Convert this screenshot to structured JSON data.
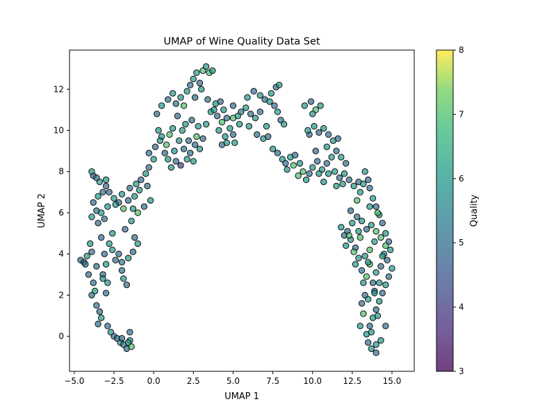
{
  "chart_data": {
    "type": "scatter",
    "title": "UMAP of Wine Quality Data Set",
    "xlabel": "UMAP 1",
    "ylabel": "UMAP 2",
    "xlim": [
      -5.3,
      16.4
    ],
    "ylim": [
      -1.7,
      13.9
    ],
    "x_ticks": [
      -5.0,
      -2.5,
      0.0,
      2.5,
      5.0,
      7.5,
      10.0,
      12.5,
      15.0
    ],
    "x_tick_labels": [
      "−5.0",
      "−2.5",
      "0.0",
      "2.5",
      "5.0",
      "7.5",
      "10.0",
      "12.5",
      "15.0"
    ],
    "y_ticks": [
      0,
      2,
      4,
      6,
      8,
      10,
      12
    ],
    "y_tick_labels": [
      "0",
      "2",
      "4",
      "6",
      "8",
      "10",
      "12"
    ],
    "grid": false,
    "colormap": "viridis",
    "colorbar": {
      "label": "Quality",
      "min": 3,
      "max": 8,
      "ticks": [
        3,
        4,
        5,
        6,
        7,
        8
      ],
      "tick_labels": [
        "3",
        "4",
        "5",
        "6",
        "7",
        "8"
      ]
    },
    "marker_edge_color": "#111111",
    "marker_alpha": 0.7,
    "points": [
      [
        -4.6,
        3.7,
        5
      ],
      [
        -4.4,
        3.6,
        5
      ],
      [
        -4.2,
        3.9,
        6
      ],
      [
        -4.3,
        3.5,
        5
      ],
      [
        -4.0,
        4.5,
        6
      ],
      [
        -3.9,
        4.1,
        5
      ],
      [
        -4.1,
        3.0,
        5
      ],
      [
        -3.8,
        2.6,
        5
      ],
      [
        -3.9,
        2.0,
        5
      ],
      [
        -3.7,
        2.2,
        6
      ],
      [
        -3.6,
        1.5,
        5
      ],
      [
        -3.4,
        1.2,
        5
      ],
      [
        -3.3,
        0.9,
        6
      ],
      [
        -3.5,
        0.6,
        5
      ],
      [
        -3.0,
        2.1,
        5
      ],
      [
        -2.9,
        2.6,
        6
      ],
      [
        -3.2,
        3.0,
        5
      ],
      [
        -3.0,
        3.5,
        6
      ],
      [
        -3.1,
        4.0,
        5
      ],
      [
        -2.8,
        4.5,
        6
      ],
      [
        -3.3,
        4.8,
        5
      ],
      [
        -3.5,
        5.5,
        5
      ],
      [
        -3.9,
        5.8,
        6
      ],
      [
        -3.6,
        6.1,
        5
      ],
      [
        -3.3,
        6.0,
        6
      ],
      [
        -3.1,
        5.7,
        5
      ],
      [
        -2.9,
        6.3,
        6
      ],
      [
        -3.8,
        6.5,
        5
      ],
      [
        -3.5,
        6.8,
        6
      ],
      [
        -3.2,
        7.0,
        5
      ],
      [
        -3.0,
        7.3,
        5
      ],
      [
        -3.4,
        7.5,
        6
      ],
      [
        -3.8,
        7.8,
        5
      ],
      [
        -3.9,
        8.0,
        6
      ],
      [
        -3.6,
        7.7,
        5
      ],
      [
        -3.0,
        7.6,
        6
      ],
      [
        -2.8,
        7.0,
        5
      ],
      [
        -2.5,
        6.7,
        6
      ],
      [
        -2.2,
        6.5,
        5
      ],
      [
        -2.0,
        6.9,
        6
      ],
      [
        -1.6,
        6.6,
        5
      ],
      [
        -1.3,
        6.2,
        6
      ],
      [
        -1.5,
        7.2,
        5
      ],
      [
        -1.1,
        7.4,
        6
      ],
      [
        -0.8,
        7.6,
        5
      ],
      [
        -0.5,
        7.9,
        6
      ],
      [
        -0.3,
        8.2,
        5
      ],
      [
        -1.0,
        6.0,
        7
      ],
      [
        -0.6,
        6.3,
        5
      ],
      [
        -0.2,
        6.6,
        6
      ],
      [
        -1.8,
        5.2,
        5
      ],
      [
        -1.4,
        5.6,
        6
      ],
      [
        -1.2,
        4.8,
        5
      ],
      [
        -1.0,
        4.5,
        6
      ],
      [
        -1.3,
        4.1,
        5
      ],
      [
        -1.6,
        3.8,
        6
      ],
      [
        -2.0,
        3.6,
        5
      ],
      [
        -2.4,
        3.7,
        5
      ],
      [
        -2.6,
        4.2,
        6
      ],
      [
        -2.2,
        4.0,
        5
      ],
      [
        -2.0,
        3.2,
        5
      ],
      [
        -1.9,
        2.8,
        6
      ],
      [
        -1.7,
        2.5,
        5
      ],
      [
        -2.9,
        0.5,
        5
      ],
      [
        -2.7,
        0.2,
        6
      ],
      [
        -2.5,
        0.0,
        5
      ],
      [
        -2.3,
        -0.1,
        5
      ],
      [
        -2.1,
        -0.3,
        6
      ],
      [
        -1.9,
        -0.4,
        5
      ],
      [
        -1.7,
        -0.6,
        5
      ],
      [
        -1.5,
        -0.2,
        6
      ],
      [
        -1.4,
        -0.5,
        7
      ],
      [
        -1.5,
        0.2,
        5
      ],
      [
        -1.6,
        -0.3,
        6
      ],
      [
        -2.0,
        -0.1,
        5
      ],
      [
        -0.3,
        8.9,
        5
      ],
      [
        0.1,
        9.2,
        5
      ],
      [
        0.3,
        10.0,
        6
      ],
      [
        0.5,
        9.7,
        6
      ],
      [
        0.8,
        9.3,
        7
      ],
      [
        0.9,
        8.6,
        6
      ],
      [
        1.1,
        8.2,
        6
      ],
      [
        0.7,
        8.9,
        5
      ],
      [
        1.4,
        8.5,
        5
      ],
      [
        1.3,
        9.0,
        6
      ],
      [
        1.6,
        9.5,
        6
      ],
      [
        1.9,
        9.1,
        5
      ],
      [
        1.7,
        8.3,
        4
      ],
      [
        2.1,
        8.6,
        6
      ],
      [
        2.3,
        8.9,
        5
      ],
      [
        2.5,
        8.5,
        6
      ],
      [
        2.6,
        9.3,
        5
      ],
      [
        2.9,
        9.1,
        6
      ],
      [
        3.1,
        9.6,
        5
      ],
      [
        2.8,
        10.2,
        6
      ],
      [
        2.4,
        10.5,
        5
      ],
      [
        2.0,
        10.3,
        6
      ],
      [
        1.5,
        10.7,
        5
      ],
      [
        1.2,
        10.1,
        6
      ],
      [
        0.2,
        10.8,
        5
      ],
      [
        0.5,
        11.2,
        6
      ],
      [
        0.9,
        11.5,
        5
      ],
      [
        1.2,
        11.8,
        6
      ],
      [
        1.4,
        11.3,
        5
      ],
      [
        1.7,
        11.6,
        6
      ],
      [
        1.9,
        11.2,
        7
      ],
      [
        2.1,
        11.9,
        6
      ],
      [
        2.3,
        12.2,
        5
      ],
      [
        2.5,
        12.5,
        6
      ],
      [
        2.7,
        12.8,
        6
      ],
      [
        2.9,
        12.3,
        5
      ],
      [
        3.1,
        12.9,
        7
      ],
      [
        3.3,
        13.1,
        6
      ],
      [
        3.5,
        12.8,
        7
      ],
      [
        3.7,
        12.9,
        6
      ],
      [
        3.0,
        12.0,
        6
      ],
      [
        2.6,
        11.6,
        5
      ],
      [
        3.4,
        11.5,
        5
      ],
      [
        3.9,
        11.3,
        6
      ],
      [
        4.2,
        11.4,
        5
      ],
      [
        4.4,
        11.0,
        6
      ],
      [
        4.0,
        10.7,
        5
      ],
      [
        3.6,
        10.9,
        6
      ],
      [
        4.3,
        10.4,
        7
      ],
      [
        4.6,
        10.6,
        5
      ],
      [
        4.8,
        10.1,
        6
      ],
      [
        4.3,
        9.3,
        5
      ],
      [
        4.6,
        9.4,
        6
      ],
      [
        5.0,
        9.8,
        5
      ],
      [
        5.1,
        9.4,
        6
      ],
      [
        5.0,
        10.6,
        7
      ],
      [
        5.3,
        10.7,
        6
      ],
      [
        5.5,
        10.9,
        5
      ],
      [
        5.8,
        11.1,
        6
      ],
      [
        6.1,
        10.8,
        5
      ],
      [
        6.4,
        10.6,
        6
      ],
      [
        6.7,
        10.9,
        5
      ],
      [
        5.0,
        11.2,
        5
      ],
      [
        5.9,
        11.6,
        6
      ],
      [
        6.3,
        11.9,
        5
      ],
      [
        6.7,
        11.7,
        6
      ],
      [
        7.0,
        11.5,
        5
      ],
      [
        7.4,
        11.8,
        6
      ],
      [
        7.7,
        12.1,
        5
      ],
      [
        7.9,
        12.2,
        6
      ],
      [
        7.6,
        11.2,
        5
      ],
      [
        7.8,
        10.9,
        6
      ],
      [
        8.0,
        10.5,
        5
      ],
      [
        8.2,
        10.3,
        6
      ],
      [
        6.5,
        9.8,
        5
      ],
      [
        6.9,
        9.6,
        6
      ],
      [
        7.2,
        9.7,
        5
      ],
      [
        7.5,
        9.1,
        6
      ],
      [
        7.8,
        8.9,
        5
      ],
      [
        8.1,
        8.6,
        6
      ],
      [
        8.3,
        8.4,
        5
      ],
      [
        8.6,
        8.7,
        6
      ],
      [
        8.9,
        8.8,
        5
      ],
      [
        9.2,
        8.4,
        6
      ],
      [
        9.4,
        8.0,
        7
      ],
      [
        9.6,
        7.6,
        6
      ],
      [
        9.8,
        7.9,
        5
      ],
      [
        10.0,
        8.2,
        6
      ],
      [
        10.3,
        8.5,
        5
      ],
      [
        10.6,
        8.1,
        6
      ],
      [
        10.9,
        8.4,
        5
      ],
      [
        11.2,
        8.7,
        6
      ],
      [
        9.8,
        9.8,
        5
      ],
      [
        10.1,
        10.2,
        6
      ],
      [
        10.4,
        9.9,
        5
      ],
      [
        10.7,
        10.1,
        6
      ],
      [
        11.0,
        9.8,
        5
      ],
      [
        11.3,
        9.5,
        6
      ],
      [
        11.6,
        9.6,
        5
      ],
      [
        10.9,
        9.2,
        6
      ],
      [
        10.2,
        9.0,
        5
      ],
      [
        9.7,
        10.0,
        6
      ],
      [
        9.5,
        11.2,
        6
      ],
      [
        9.9,
        11.4,
        5
      ],
      [
        10.2,
        11.0,
        7
      ],
      [
        10.5,
        11.2,
        6
      ],
      [
        10.0,
        10.8,
        6
      ],
      [
        11.5,
        9.0,
        5
      ],
      [
        11.8,
        8.7,
        6
      ],
      [
        12.1,
        8.4,
        5
      ],
      [
        11.4,
        8.0,
        6
      ],
      [
        11.7,
        7.7,
        5
      ],
      [
        12.0,
        7.9,
        6
      ],
      [
        12.3,
        7.6,
        5
      ],
      [
        12.6,
        7.3,
        6
      ],
      [
        12.9,
        7.5,
        5
      ],
      [
        13.2,
        7.4,
        6
      ],
      [
        13.5,
        7.6,
        5
      ],
      [
        13.3,
        8.0,
        6
      ],
      [
        13.6,
        7.2,
        5
      ],
      [
        13.8,
        6.7,
        6
      ],
      [
        14.0,
        6.3,
        5
      ],
      [
        14.2,
        5.9,
        6
      ],
      [
        14.4,
        5.5,
        5
      ],
      [
        14.6,
        5.0,
        6
      ],
      [
        14.8,
        4.6,
        5
      ],
      [
        14.9,
        4.2,
        6
      ],
      [
        14.7,
        3.7,
        5
      ],
      [
        15.0,
        3.3,
        6
      ],
      [
        14.8,
        2.9,
        5
      ],
      [
        14.6,
        2.5,
        6
      ],
      [
        14.4,
        2.1,
        5
      ],
      [
        14.2,
        1.7,
        6
      ],
      [
        14.0,
        1.3,
        5
      ],
      [
        13.8,
        0.9,
        6
      ],
      [
        13.6,
        0.5,
        5
      ],
      [
        13.4,
        0.1,
        6
      ],
      [
        13.5,
        -0.3,
        5
      ],
      [
        13.7,
        -0.6,
        6
      ],
      [
        14.0,
        -0.8,
        5
      ],
      [
        14.3,
        -0.2,
        6
      ],
      [
        14.6,
        0.5,
        5
      ],
      [
        13.3,
        2.0,
        5
      ],
      [
        13.2,
        2.6,
        6
      ],
      [
        13.1,
        3.2,
        5
      ],
      [
        12.9,
        3.8,
        6
      ],
      [
        12.7,
        4.3,
        5
      ],
      [
        12.4,
        4.7,
        6
      ],
      [
        12.2,
        5.1,
        5
      ],
      [
        11.8,
        5.3,
        6
      ],
      [
        12.0,
        4.9,
        5
      ],
      [
        12.5,
        5.5,
        6
      ],
      [
        12.8,
        5.8,
        5
      ],
      [
        13.1,
        5.6,
        6
      ],
      [
        13.4,
        5.2,
        5
      ],
      [
        13.7,
        5.4,
        6
      ],
      [
        14.0,
        5.1,
        7
      ],
      [
        13.9,
        4.6,
        6
      ],
      [
        13.6,
        4.2,
        7
      ],
      [
        13.3,
        3.9,
        6
      ],
      [
        13.6,
        3.5,
        7
      ],
      [
        14.0,
        3.1,
        6
      ],
      [
        14.3,
        3.4,
        5
      ],
      [
        14.5,
        4.0,
        6
      ],
      [
        13.8,
        2.6,
        5
      ],
      [
        13.5,
        1.8,
        6
      ],
      [
        13.2,
        1.1,
        7
      ],
      [
        13.0,
        0.5,
        6
      ],
      [
        13.9,
        2.2,
        5
      ],
      [
        14.1,
        1.0,
        6
      ],
      [
        12.8,
        6.6,
        7
      ],
      [
        13.0,
        7.0,
        6
      ],
      [
        12.4,
        6.1,
        5
      ],
      [
        12.6,
        4.1,
        7
      ],
      [
        12.1,
        4.4,
        6
      ],
      [
        11.5,
        7.3,
        6
      ],
      [
        14.3,
        4.8,
        7
      ],
      [
        12.7,
        3.5,
        6
      ],
      [
        13.6,
        6.3,
        6
      ],
      [
        14.1,
        6.0,
        7
      ],
      [
        13.9,
        2.1,
        6
      ],
      [
        13.1,
        1.6,
        5
      ],
      [
        14.0,
        -0.4,
        6
      ],
      [
        13.7,
        0.2,
        6
      ],
      [
        13.4,
        2.9,
        7
      ],
      [
        14.2,
        2.6,
        6
      ],
      [
        14.4,
        3.9,
        6
      ],
      [
        14.6,
        4.4,
        7
      ],
      [
        12.3,
        4.9,
        7
      ],
      [
        12.9,
        5.1,
        6
      ],
      [
        13.5,
        3.6,
        6
      ],
      [
        13.0,
        4.8,
        7
      ],
      [
        -3.2,
        2.8,
        6
      ],
      [
        -3.6,
        3.4,
        5
      ],
      [
        -2.6,
        5.0,
        6
      ],
      [
        -2.4,
        6.4,
        6
      ],
      [
        -1.9,
        6.2,
        7
      ],
      [
        -1.2,
        6.8,
        6
      ],
      [
        -0.9,
        7.1,
        6
      ],
      [
        -0.4,
        7.3,
        5
      ],
      [
        0.0,
        8.6,
        6
      ],
      [
        0.4,
        9.5,
        6
      ],
      [
        1.0,
        9.8,
        7
      ],
      [
        1.8,
        10.0,
        6
      ],
      [
        2.2,
        9.5,
        5
      ],
      [
        2.7,
        9.7,
        7
      ],
      [
        3.3,
        10.3,
        6
      ],
      [
        3.8,
        11.0,
        6
      ],
      [
        4.1,
        10.0,
        6
      ],
      [
        4.5,
        9.7,
        6
      ],
      [
        5.4,
        10.3,
        6
      ],
      [
        6.0,
        10.2,
        6
      ],
      [
        7.1,
        10.2,
        6
      ],
      [
        7.3,
        11.4,
        6
      ],
      [
        8.4,
        8.1,
        6
      ],
      [
        8.8,
        8.3,
        7
      ],
      [
        9.1,
        7.8,
        7
      ],
      [
        10.4,
        7.9,
        6
      ],
      [
        10.7,
        7.5,
        6
      ],
      [
        11.0,
        7.9,
        6
      ],
      [
        11.9,
        7.4,
        6
      ]
    ]
  }
}
